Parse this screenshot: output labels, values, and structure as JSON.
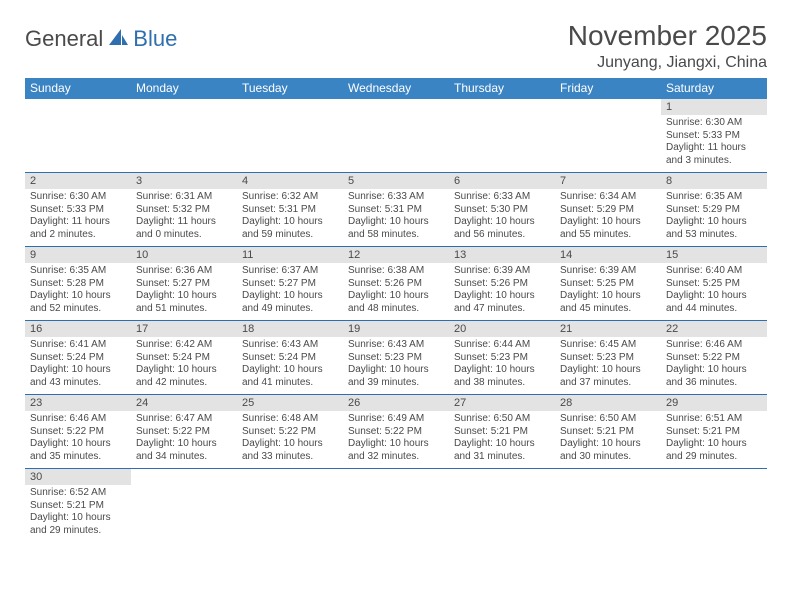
{
  "logo": {
    "part1": "General",
    "part2": "Blue"
  },
  "title": "November 2025",
  "location": "Junyang, Jiangxi, China",
  "colors": {
    "header_bg": "#3b84c4",
    "header_text": "#ffffff",
    "daynum_bg": "#e3e3e3",
    "text": "#4a4a4a",
    "border": "#2f6fb0",
    "logo_blue": "#2f6fb0"
  },
  "weekdays": [
    "Sunday",
    "Monday",
    "Tuesday",
    "Wednesday",
    "Thursday",
    "Friday",
    "Saturday"
  ],
  "weeks": [
    [
      null,
      null,
      null,
      null,
      null,
      null,
      {
        "d": "1",
        "sr": "Sunrise: 6:30 AM",
        "ss": "Sunset: 5:33 PM",
        "dl1": "Daylight: 11 hours",
        "dl2": "and 3 minutes."
      }
    ],
    [
      {
        "d": "2",
        "sr": "Sunrise: 6:30 AM",
        "ss": "Sunset: 5:33 PM",
        "dl1": "Daylight: 11 hours",
        "dl2": "and 2 minutes."
      },
      {
        "d": "3",
        "sr": "Sunrise: 6:31 AM",
        "ss": "Sunset: 5:32 PM",
        "dl1": "Daylight: 11 hours",
        "dl2": "and 0 minutes."
      },
      {
        "d": "4",
        "sr": "Sunrise: 6:32 AM",
        "ss": "Sunset: 5:31 PM",
        "dl1": "Daylight: 10 hours",
        "dl2": "and 59 minutes."
      },
      {
        "d": "5",
        "sr": "Sunrise: 6:33 AM",
        "ss": "Sunset: 5:31 PM",
        "dl1": "Daylight: 10 hours",
        "dl2": "and 58 minutes."
      },
      {
        "d": "6",
        "sr": "Sunrise: 6:33 AM",
        "ss": "Sunset: 5:30 PM",
        "dl1": "Daylight: 10 hours",
        "dl2": "and 56 minutes."
      },
      {
        "d": "7",
        "sr": "Sunrise: 6:34 AM",
        "ss": "Sunset: 5:29 PM",
        "dl1": "Daylight: 10 hours",
        "dl2": "and 55 minutes."
      },
      {
        "d": "8",
        "sr": "Sunrise: 6:35 AM",
        "ss": "Sunset: 5:29 PM",
        "dl1": "Daylight: 10 hours",
        "dl2": "and 53 minutes."
      }
    ],
    [
      {
        "d": "9",
        "sr": "Sunrise: 6:35 AM",
        "ss": "Sunset: 5:28 PM",
        "dl1": "Daylight: 10 hours",
        "dl2": "and 52 minutes."
      },
      {
        "d": "10",
        "sr": "Sunrise: 6:36 AM",
        "ss": "Sunset: 5:27 PM",
        "dl1": "Daylight: 10 hours",
        "dl2": "and 51 minutes."
      },
      {
        "d": "11",
        "sr": "Sunrise: 6:37 AM",
        "ss": "Sunset: 5:27 PM",
        "dl1": "Daylight: 10 hours",
        "dl2": "and 49 minutes."
      },
      {
        "d": "12",
        "sr": "Sunrise: 6:38 AM",
        "ss": "Sunset: 5:26 PM",
        "dl1": "Daylight: 10 hours",
        "dl2": "and 48 minutes."
      },
      {
        "d": "13",
        "sr": "Sunrise: 6:39 AM",
        "ss": "Sunset: 5:26 PM",
        "dl1": "Daylight: 10 hours",
        "dl2": "and 47 minutes."
      },
      {
        "d": "14",
        "sr": "Sunrise: 6:39 AM",
        "ss": "Sunset: 5:25 PM",
        "dl1": "Daylight: 10 hours",
        "dl2": "and 45 minutes."
      },
      {
        "d": "15",
        "sr": "Sunrise: 6:40 AM",
        "ss": "Sunset: 5:25 PM",
        "dl1": "Daylight: 10 hours",
        "dl2": "and 44 minutes."
      }
    ],
    [
      {
        "d": "16",
        "sr": "Sunrise: 6:41 AM",
        "ss": "Sunset: 5:24 PM",
        "dl1": "Daylight: 10 hours",
        "dl2": "and 43 minutes."
      },
      {
        "d": "17",
        "sr": "Sunrise: 6:42 AM",
        "ss": "Sunset: 5:24 PM",
        "dl1": "Daylight: 10 hours",
        "dl2": "and 42 minutes."
      },
      {
        "d": "18",
        "sr": "Sunrise: 6:43 AM",
        "ss": "Sunset: 5:24 PM",
        "dl1": "Daylight: 10 hours",
        "dl2": "and 41 minutes."
      },
      {
        "d": "19",
        "sr": "Sunrise: 6:43 AM",
        "ss": "Sunset: 5:23 PM",
        "dl1": "Daylight: 10 hours",
        "dl2": "and 39 minutes."
      },
      {
        "d": "20",
        "sr": "Sunrise: 6:44 AM",
        "ss": "Sunset: 5:23 PM",
        "dl1": "Daylight: 10 hours",
        "dl2": "and 38 minutes."
      },
      {
        "d": "21",
        "sr": "Sunrise: 6:45 AM",
        "ss": "Sunset: 5:23 PM",
        "dl1": "Daylight: 10 hours",
        "dl2": "and 37 minutes."
      },
      {
        "d": "22",
        "sr": "Sunrise: 6:46 AM",
        "ss": "Sunset: 5:22 PM",
        "dl1": "Daylight: 10 hours",
        "dl2": "and 36 minutes."
      }
    ],
    [
      {
        "d": "23",
        "sr": "Sunrise: 6:46 AM",
        "ss": "Sunset: 5:22 PM",
        "dl1": "Daylight: 10 hours",
        "dl2": "and 35 minutes."
      },
      {
        "d": "24",
        "sr": "Sunrise: 6:47 AM",
        "ss": "Sunset: 5:22 PM",
        "dl1": "Daylight: 10 hours",
        "dl2": "and 34 minutes."
      },
      {
        "d": "25",
        "sr": "Sunrise: 6:48 AM",
        "ss": "Sunset: 5:22 PM",
        "dl1": "Daylight: 10 hours",
        "dl2": "and 33 minutes."
      },
      {
        "d": "26",
        "sr": "Sunrise: 6:49 AM",
        "ss": "Sunset: 5:22 PM",
        "dl1": "Daylight: 10 hours",
        "dl2": "and 32 minutes."
      },
      {
        "d": "27",
        "sr": "Sunrise: 6:50 AM",
        "ss": "Sunset: 5:21 PM",
        "dl1": "Daylight: 10 hours",
        "dl2": "and 31 minutes."
      },
      {
        "d": "28",
        "sr": "Sunrise: 6:50 AM",
        "ss": "Sunset: 5:21 PM",
        "dl1": "Daylight: 10 hours",
        "dl2": "and 30 minutes."
      },
      {
        "d": "29",
        "sr": "Sunrise: 6:51 AM",
        "ss": "Sunset: 5:21 PM",
        "dl1": "Daylight: 10 hours",
        "dl2": "and 29 minutes."
      }
    ],
    [
      {
        "d": "30",
        "sr": "Sunrise: 6:52 AM",
        "ss": "Sunset: 5:21 PM",
        "dl1": "Daylight: 10 hours",
        "dl2": "and 29 minutes."
      },
      null,
      null,
      null,
      null,
      null,
      null
    ]
  ]
}
